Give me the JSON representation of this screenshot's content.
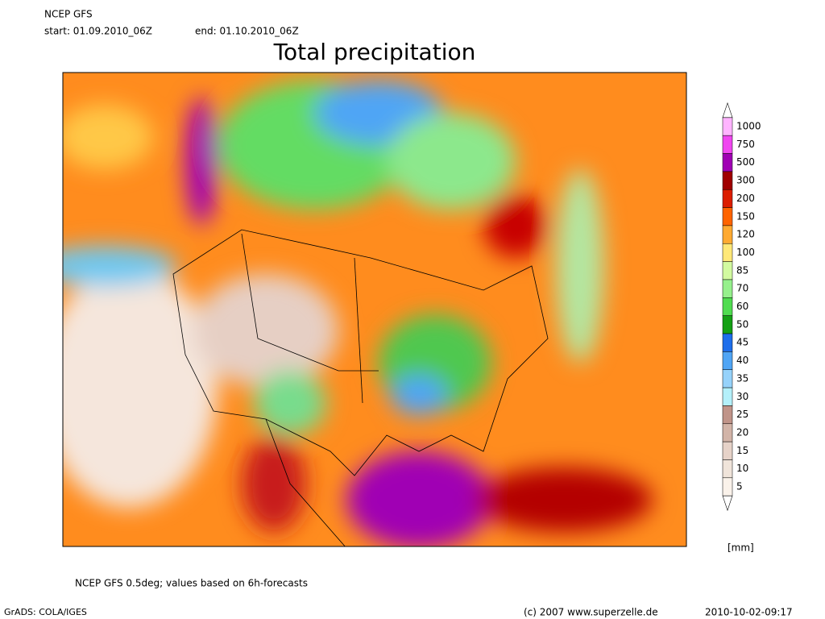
{
  "header": {
    "model": "NCEP GFS",
    "start": "start: 01.09.2010_06Z",
    "end": "end: 01.10.2010_06Z",
    "title": "Total precipitation"
  },
  "legend": {
    "levels": [
      {
        "value": 1000,
        "color": "#ffb4ff"
      },
      {
        "value": 750,
        "color": "#f046f0"
      },
      {
        "value": 500,
        "color": "#a000b4"
      },
      {
        "value": 300,
        "color": "#a00000"
      },
      {
        "value": 200,
        "color": "#dc1e00"
      },
      {
        "value": 150,
        "color": "#ff6400"
      },
      {
        "value": 120,
        "color": "#ffaa32"
      },
      {
        "value": 100,
        "color": "#ffe878"
      },
      {
        "value": 85,
        "color": "#d2faa0"
      },
      {
        "value": 70,
        "color": "#96f08c"
      },
      {
        "value": 60,
        "color": "#50dc50"
      },
      {
        "value": 50,
        "color": "#14a014"
      },
      {
        "value": 45,
        "color": "#1e6eeb"
      },
      {
        "value": 40,
        "color": "#50a5f5"
      },
      {
        "value": 35,
        "color": "#96d2fa"
      },
      {
        "value": 30,
        "color": "#b4f0fa"
      },
      {
        "value": 25,
        "color": "#c09489"
      },
      {
        "value": 20,
        "color": "#d2b4a8"
      },
      {
        "value": 15,
        "color": "#e6d2c8"
      },
      {
        "value": 10,
        "color": "#f0e4da"
      },
      {
        "value": 5,
        "color": "#faf2ea"
      }
    ],
    "unit": "[mm]"
  },
  "footer": {
    "note": "NCEP GFS 0.5deg; values based on 6h-forecasts",
    "software": "GrADS: COLA/IGES",
    "copyright": "(c) 2007 www.superzelle.de",
    "timestamp": "2010-10-02-09:17"
  }
}
